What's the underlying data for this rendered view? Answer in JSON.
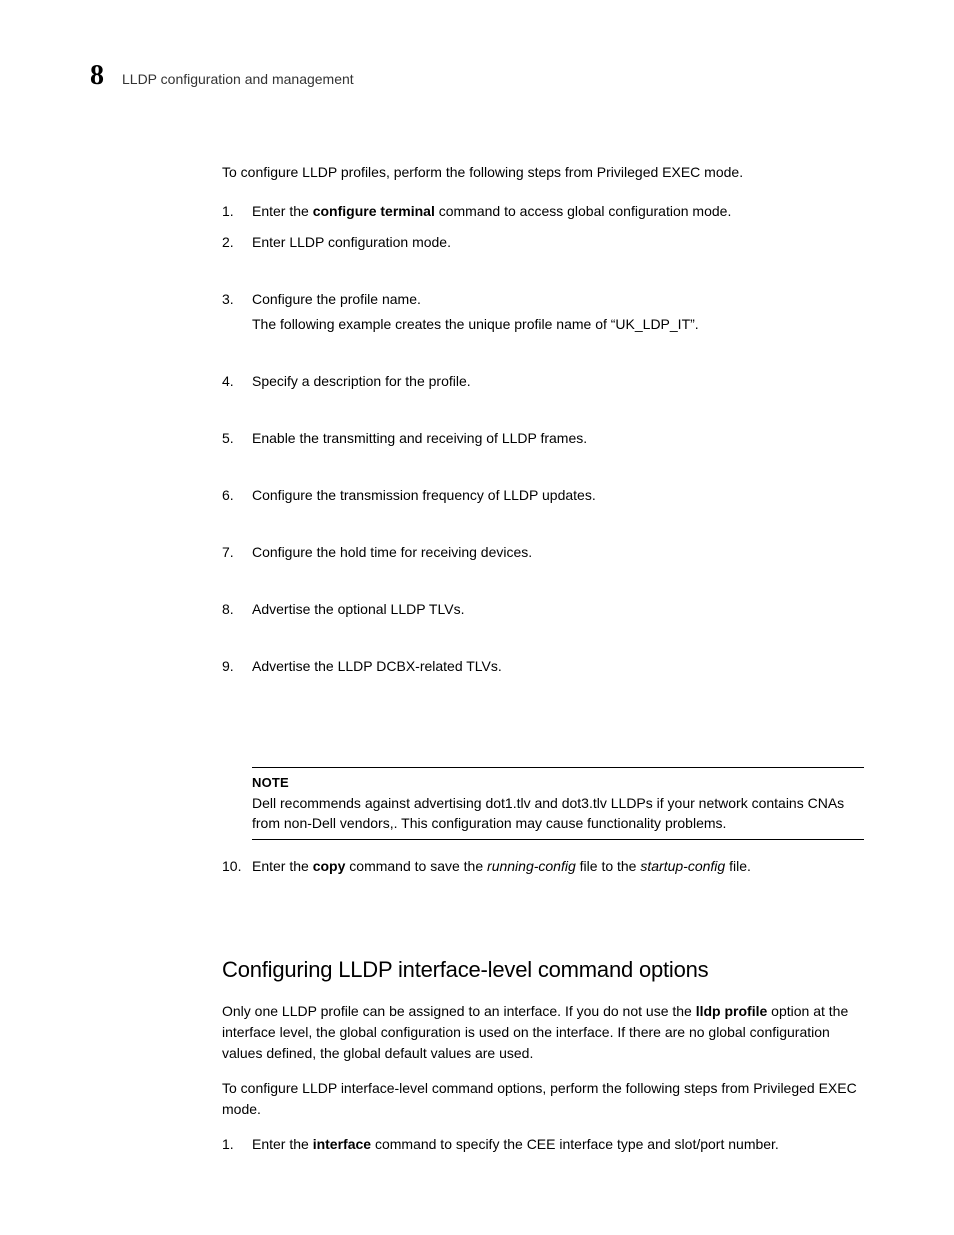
{
  "header": {
    "chapter_number": "8",
    "chapter_title": "LLDP configuration and management"
  },
  "intro": {
    "prefix": "To configure LLDP profiles, perform the following steps from Privileged EXEC mode."
  },
  "steps": [
    {
      "num": "1.",
      "pre": "Enter the ",
      "bold": "configure terminal",
      "post": " command to access global configuration mode.",
      "gap": false
    },
    {
      "num": "2.",
      "text": "Enter LLDP configuration mode.",
      "gap": true
    },
    {
      "num": "3.",
      "text": "Configure the profile name.",
      "sub": "The following example creates the unique profile name of “UK_LDP_IT”.",
      "gap": true
    },
    {
      "num": "4.",
      "text": "Specify a description for the profile.",
      "gap": true
    },
    {
      "num": "5.",
      "text": "Enable the transmitting and receiving of LLDP frames.",
      "gap": true
    },
    {
      "num": "6.",
      "text": "Configure the transmission frequency of LLDP updates.",
      "gap": true
    },
    {
      "num": "7.",
      "text": "Configure the hold time for receiving devices.",
      "gap": true
    },
    {
      "num": "8.",
      "text": "Advertise the optional LLDP TLVs.",
      "gap": true
    },
    {
      "num": "9.",
      "text": "Advertise the LLDP DCBX-related TLVs.",
      "gap_note": true
    }
  ],
  "note": {
    "label": "NOTE",
    "text": "Dell recommends against advertising dot1.tlv and dot3.tlv LLDPs if your network contains CNAs from non-Dell vendors,. This configuration may cause functionality problems."
  },
  "step10": {
    "num": "10.",
    "pre": "Enter the ",
    "bold": "copy",
    "mid1": " command to save the ",
    "ital1": "running-config",
    "mid2": " file to the ",
    "ital2": "startup-config",
    "post": " file."
  },
  "section2": {
    "heading": "Configuring LLDP interface-level command options",
    "para1_pre": "Only one LLDP profile can be assigned to an interface. If you do not use the ",
    "para1_bold": "lldp profile",
    "para1_post": " option at the interface level, the global configuration is used on the interface. If there are no global configuration values defined, the global default values are used.",
    "para2": "To configure LLDP interface-level command options, perform the following steps from Privileged EXEC mode.",
    "step1_num": "1.",
    "step1_pre": "Enter the ",
    "step1_bold": "interface",
    "step1_post": " command to specify the CEE interface type and slot/port number."
  }
}
